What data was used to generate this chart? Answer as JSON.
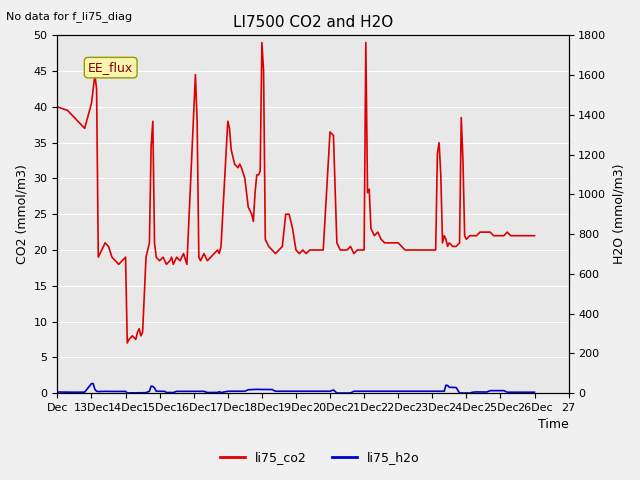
{
  "title": "LI7500 CO2 and H2O",
  "top_left_text": "No data for f_li75_diag",
  "annotation_box": "EE_flux",
  "xlabel": "Time",
  "ylabel_left": "CO2 (mmol/m3)",
  "ylabel_right": "H2O (mmol/m3)",
  "ylim_left": [
    0,
    50
  ],
  "ylim_right": [
    0,
    1800
  ],
  "yticks_left": [
    0,
    5,
    10,
    15,
    20,
    25,
    30,
    35,
    40,
    45,
    50
  ],
  "yticks_right": [
    0,
    200,
    400,
    600,
    800,
    1000,
    1200,
    1400,
    1600,
    1800
  ],
  "xtick_positions": [
    0,
    1,
    2,
    3,
    4,
    5,
    6,
    7,
    8,
    9,
    10,
    11,
    12,
    13,
    14,
    15
  ],
  "xtick_labels": [
    "Dec",
    "13Dec",
    "14Dec",
    "15Dec",
    "16Dec",
    "17Dec",
    "18Dec",
    "19Dec",
    "20Dec",
    "21Dec",
    "22Dec",
    "23Dec",
    "24Dec",
    "25Dec",
    "26Dec",
    "27"
  ],
  "color_co2": "#dd0000",
  "color_h2o": "#0000cc",
  "legend_co2": "li75_co2",
  "legend_h2o": "li75_h2o",
  "background_color": "#e8e8e8",
  "fig_background": "#f0f0f0",
  "co2_data": [
    [
      0,
      40.0
    ],
    [
      0.3,
      39.5
    ],
    [
      0.5,
      38.5
    ],
    [
      0.8,
      37.0
    ],
    [
      1.0,
      40.5
    ],
    [
      1.1,
      44.5
    ],
    [
      1.15,
      42.5
    ],
    [
      1.2,
      19.0
    ],
    [
      1.3,
      20.0
    ],
    [
      1.4,
      21.0
    ],
    [
      1.5,
      20.5
    ],
    [
      1.6,
      19.0
    ],
    [
      1.7,
      18.5
    ],
    [
      1.8,
      18.0
    ],
    [
      1.9,
      18.5
    ],
    [
      2.0,
      19.0
    ],
    [
      2.05,
      7.0
    ],
    [
      2.1,
      7.5
    ],
    [
      2.2,
      8.0
    ],
    [
      2.3,
      7.5
    ],
    [
      2.35,
      8.5
    ],
    [
      2.4,
      9.0
    ],
    [
      2.45,
      8.0
    ],
    [
      2.5,
      8.5
    ],
    [
      2.6,
      19.0
    ],
    [
      2.7,
      21.0
    ],
    [
      2.75,
      34.5
    ],
    [
      2.8,
      38.0
    ],
    [
      2.85,
      21.0
    ],
    [
      2.9,
      19.0
    ],
    [
      3.0,
      18.5
    ],
    [
      3.1,
      19.0
    ],
    [
      3.15,
      18.5
    ],
    [
      3.2,
      18.0
    ],
    [
      3.3,
      18.5
    ],
    [
      3.35,
      19.0
    ],
    [
      3.4,
      18.0
    ],
    [
      3.5,
      19.0
    ],
    [
      3.6,
      18.5
    ],
    [
      3.7,
      19.5
    ],
    [
      3.8,
      18.0
    ],
    [
      4.0,
      39.0
    ],
    [
      4.05,
      44.5
    ],
    [
      4.1,
      38.0
    ],
    [
      4.15,
      19.0
    ],
    [
      4.2,
      18.5
    ],
    [
      4.3,
      19.5
    ],
    [
      4.4,
      18.5
    ],
    [
      4.5,
      19.0
    ],
    [
      4.6,
      19.5
    ],
    [
      4.7,
      20.0
    ],
    [
      4.75,
      19.5
    ],
    [
      4.8,
      20.5
    ],
    [
      5.0,
      38.0
    ],
    [
      5.05,
      37.0
    ],
    [
      5.1,
      34.0
    ],
    [
      5.15,
      33.0
    ],
    [
      5.2,
      32.0
    ],
    [
      5.3,
      31.5
    ],
    [
      5.35,
      32.0
    ],
    [
      5.4,
      31.5
    ],
    [
      5.5,
      30.0
    ],
    [
      5.6,
      26.0
    ],
    [
      5.7,
      25.0
    ],
    [
      5.75,
      24.0
    ],
    [
      5.8,
      28.0
    ],
    [
      5.85,
      30.5
    ],
    [
      5.9,
      30.5
    ],
    [
      5.95,
      31.0
    ],
    [
      6.0,
      49.0
    ],
    [
      6.05,
      45.0
    ],
    [
      6.1,
      21.5
    ],
    [
      6.2,
      20.5
    ],
    [
      6.3,
      20.0
    ],
    [
      6.4,
      19.5
    ],
    [
      6.5,
      20.0
    ],
    [
      6.6,
      20.5
    ],
    [
      6.7,
      25.0
    ],
    [
      6.8,
      25.0
    ],
    [
      6.9,
      23.0
    ],
    [
      7.0,
      20.0
    ],
    [
      7.1,
      19.5
    ],
    [
      7.2,
      20.0
    ],
    [
      7.3,
      19.5
    ],
    [
      7.4,
      20.0
    ],
    [
      7.5,
      20.0
    ],
    [
      7.6,
      20.0
    ],
    [
      7.7,
      20.0
    ],
    [
      7.8,
      20.0
    ],
    [
      8.0,
      36.5
    ],
    [
      8.1,
      36.0
    ],
    [
      8.2,
      21.0
    ],
    [
      8.25,
      20.5
    ],
    [
      8.3,
      20.0
    ],
    [
      8.4,
      20.0
    ],
    [
      8.5,
      20.0
    ],
    [
      8.6,
      20.5
    ],
    [
      8.7,
      19.5
    ],
    [
      8.8,
      20.0
    ],
    [
      8.9,
      20.0
    ],
    [
      9.0,
      20.0
    ],
    [
      9.05,
      49.0
    ],
    [
      9.1,
      28.0
    ],
    [
      9.15,
      28.5
    ],
    [
      9.2,
      23.0
    ],
    [
      9.3,
      22.0
    ],
    [
      9.4,
      22.5
    ],
    [
      9.5,
      21.5
    ],
    [
      9.6,
      21.0
    ],
    [
      9.7,
      21.0
    ],
    [
      9.8,
      21.0
    ],
    [
      9.9,
      21.0
    ],
    [
      10.0,
      21.0
    ],
    [
      10.1,
      20.5
    ],
    [
      10.2,
      20.0
    ],
    [
      10.3,
      20.0
    ],
    [
      10.4,
      20.0
    ],
    [
      10.5,
      20.0
    ],
    [
      10.6,
      20.0
    ],
    [
      10.7,
      20.0
    ],
    [
      10.8,
      20.0
    ],
    [
      10.9,
      20.0
    ],
    [
      11.0,
      20.0
    ],
    [
      11.1,
      20.0
    ],
    [
      11.15,
      33.5
    ],
    [
      11.2,
      35.0
    ],
    [
      11.25,
      30.5
    ],
    [
      11.3,
      21.0
    ],
    [
      11.35,
      22.0
    ],
    [
      11.4,
      21.5
    ],
    [
      11.45,
      20.5
    ],
    [
      11.5,
      21.0
    ],
    [
      11.6,
      20.5
    ],
    [
      11.7,
      20.5
    ],
    [
      11.8,
      21.0
    ],
    [
      11.85,
      38.5
    ],
    [
      11.9,
      32.5
    ],
    [
      11.95,
      22.0
    ],
    [
      12.0,
      21.5
    ],
    [
      12.1,
      22.0
    ],
    [
      12.2,
      22.0
    ],
    [
      12.3,
      22.0
    ],
    [
      12.4,
      22.5
    ],
    [
      12.5,
      22.5
    ],
    [
      12.6,
      22.5
    ],
    [
      12.7,
      22.5
    ],
    [
      12.8,
      22.0
    ],
    [
      12.9,
      22.0
    ],
    [
      13.0,
      22.0
    ],
    [
      13.1,
      22.0
    ],
    [
      13.2,
      22.5
    ],
    [
      13.3,
      22.0
    ],
    [
      13.4,
      22.0
    ],
    [
      13.5,
      22.0
    ],
    [
      13.6,
      22.0
    ],
    [
      13.7,
      22.0
    ],
    [
      13.8,
      22.0
    ],
    [
      13.9,
      22.0
    ],
    [
      14.0,
      22.0
    ]
  ],
  "h2o_data": [
    [
      0,
      5.5
    ],
    [
      0.3,
      5.0
    ],
    [
      0.5,
      4.5
    ],
    [
      0.8,
      5.0
    ],
    [
      1.0,
      48.0
    ],
    [
      1.05,
      47.5
    ],
    [
      1.1,
      19.0
    ],
    [
      1.15,
      9.5
    ],
    [
      1.2,
      8.0
    ],
    [
      1.3,
      8.5
    ],
    [
      1.4,
      9.0
    ],
    [
      1.5,
      8.5
    ],
    [
      1.6,
      8.5
    ],
    [
      1.7,
      8.5
    ],
    [
      1.8,
      9.0
    ],
    [
      1.9,
      8.5
    ],
    [
      2.0,
      8.5
    ],
    [
      2.05,
      0.5
    ],
    [
      2.1,
      1.0
    ],
    [
      2.2,
      1.5
    ],
    [
      2.3,
      1.0
    ],
    [
      2.35,
      1.5
    ],
    [
      2.4,
      2.0
    ],
    [
      2.45,
      1.5
    ],
    [
      2.5,
      2.0
    ],
    [
      2.6,
      2.5
    ],
    [
      2.7,
      9.5
    ],
    [
      2.75,
      35.0
    ],
    [
      2.8,
      34.0
    ],
    [
      2.85,
      26.0
    ],
    [
      2.9,
      9.5
    ],
    [
      3.0,
      9.5
    ],
    [
      3.1,
      9.0
    ],
    [
      3.15,
      9.0
    ],
    [
      3.2,
      3.0
    ],
    [
      3.3,
      3.0
    ],
    [
      3.35,
      3.0
    ],
    [
      3.4,
      3.0
    ],
    [
      3.5,
      9.0
    ],
    [
      3.6,
      9.0
    ],
    [
      3.7,
      9.5
    ],
    [
      3.8,
      9.0
    ],
    [
      4.0,
      9.0
    ],
    [
      4.05,
      9.0
    ],
    [
      4.1,
      9.0
    ],
    [
      4.15,
      9.0
    ],
    [
      4.2,
      9.0
    ],
    [
      4.3,
      9.0
    ],
    [
      4.4,
      3.0
    ],
    [
      4.5,
      3.0
    ],
    [
      4.6,
      3.5
    ],
    [
      4.7,
      3.5
    ],
    [
      4.75,
      7.0
    ],
    [
      4.8,
      3.0
    ],
    [
      5.0,
      9.0
    ],
    [
      5.05,
      9.5
    ],
    [
      5.1,
      9.5
    ],
    [
      5.15,
      9.5
    ],
    [
      5.2,
      9.5
    ],
    [
      5.3,
      9.5
    ],
    [
      5.35,
      9.5
    ],
    [
      5.4,
      9.5
    ],
    [
      5.5,
      9.5
    ],
    [
      5.6,
      17.0
    ],
    [
      5.7,
      18.0
    ],
    [
      5.75,
      18.5
    ],
    [
      5.8,
      18.5
    ],
    [
      5.85,
      19.0
    ],
    [
      5.9,
      18.5
    ],
    [
      5.95,
      18.5
    ],
    [
      6.0,
      18.5
    ],
    [
      6.05,
      18.5
    ],
    [
      6.1,
      18.5
    ],
    [
      6.2,
      18.0
    ],
    [
      6.3,
      18.0
    ],
    [
      6.4,
      9.5
    ],
    [
      6.5,
      9.5
    ],
    [
      6.6,
      9.5
    ],
    [
      6.7,
      9.5
    ],
    [
      6.8,
      9.5
    ],
    [
      6.9,
      9.5
    ],
    [
      7.0,
      9.5
    ],
    [
      7.1,
      9.5
    ],
    [
      7.2,
      9.5
    ],
    [
      7.3,
      9.5
    ],
    [
      7.4,
      9.5
    ],
    [
      7.5,
      9.5
    ],
    [
      7.6,
      9.5
    ],
    [
      7.7,
      9.5
    ],
    [
      7.8,
      9.5
    ],
    [
      8.0,
      9.5
    ],
    [
      8.1,
      16.0
    ],
    [
      8.2,
      0.5
    ],
    [
      8.25,
      0.5
    ],
    [
      8.3,
      0.5
    ],
    [
      8.4,
      0.5
    ],
    [
      8.5,
      0.5
    ],
    [
      8.6,
      0.5
    ],
    [
      8.7,
      9.5
    ],
    [
      8.8,
      9.5
    ],
    [
      8.9,
      9.5
    ],
    [
      9.0,
      9.5
    ],
    [
      9.05,
      9.5
    ],
    [
      9.1,
      9.5
    ],
    [
      9.15,
      9.5
    ],
    [
      9.2,
      9.5
    ],
    [
      9.3,
      9.5
    ],
    [
      9.4,
      9.5
    ],
    [
      9.5,
      9.5
    ],
    [
      9.6,
      9.5
    ],
    [
      9.7,
      9.5
    ],
    [
      9.8,
      9.5
    ],
    [
      9.9,
      9.5
    ],
    [
      10.0,
      9.5
    ],
    [
      10.1,
      9.5
    ],
    [
      10.2,
      9.5
    ],
    [
      10.3,
      9.5
    ],
    [
      10.4,
      9.5
    ],
    [
      10.5,
      9.5
    ],
    [
      10.6,
      9.5
    ],
    [
      10.7,
      9.5
    ],
    [
      10.8,
      9.5
    ],
    [
      10.9,
      9.5
    ],
    [
      11.0,
      9.5
    ],
    [
      11.1,
      9.5
    ],
    [
      11.15,
      9.5
    ],
    [
      11.2,
      9.5
    ],
    [
      11.25,
      9.5
    ],
    [
      11.3,
      9.5
    ],
    [
      11.35,
      9.5
    ],
    [
      11.4,
      39.5
    ],
    [
      11.45,
      39.0
    ],
    [
      11.5,
      29.0
    ],
    [
      11.6,
      29.0
    ],
    [
      11.7,
      28.0
    ],
    [
      11.8,
      0.5
    ],
    [
      11.85,
      0.5
    ],
    [
      11.9,
      0.5
    ],
    [
      11.95,
      0.5
    ],
    [
      12.0,
      0.5
    ],
    [
      12.05,
      0.5
    ],
    [
      12.1,
      0.5
    ],
    [
      12.2,
      5.0
    ],
    [
      12.3,
      6.0
    ],
    [
      12.4,
      6.0
    ],
    [
      12.5,
      5.5
    ],
    [
      12.6,
      5.5
    ],
    [
      12.7,
      12.5
    ],
    [
      12.8,
      12.5
    ],
    [
      12.9,
      12.5
    ],
    [
      13.0,
      12.5
    ],
    [
      13.1,
      12.5
    ],
    [
      13.2,
      4.5
    ],
    [
      13.3,
      4.5
    ],
    [
      13.4,
      4.5
    ],
    [
      13.5,
      4.5
    ],
    [
      13.6,
      4.5
    ],
    [
      13.7,
      4.5
    ],
    [
      13.8,
      4.5
    ],
    [
      13.9,
      4.5
    ],
    [
      14.0,
      4.5
    ]
  ]
}
